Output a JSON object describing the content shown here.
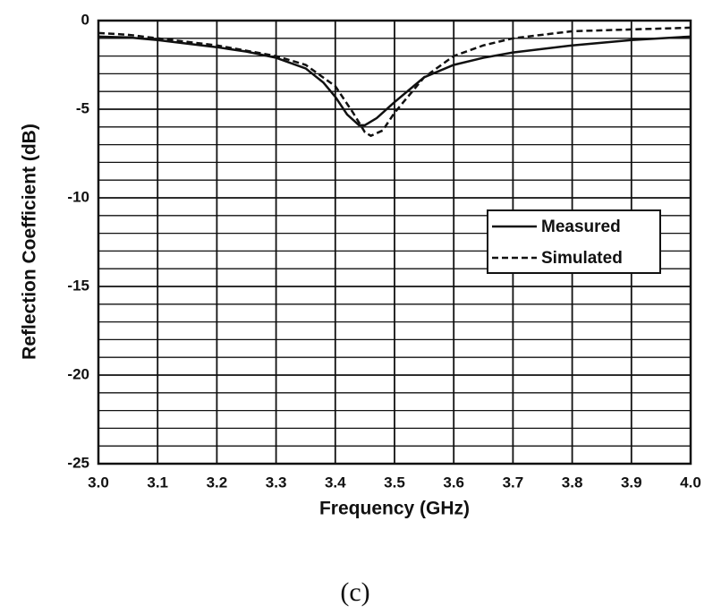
{
  "chart_data": {
    "type": "line",
    "xlabel": "Frequency (GHz)",
    "ylabel": "Reflection Coefficient (dB)",
    "caption": "(c)",
    "xlim": [
      3.0,
      4.0
    ],
    "ylim": [
      -25,
      0
    ],
    "xticks": [
      {
        "value": 3.0,
        "label": "3.0"
      },
      {
        "value": 3.1,
        "label": "3.1"
      },
      {
        "value": 3.2,
        "label": "3.2"
      },
      {
        "value": 3.3,
        "label": "3.3"
      },
      {
        "value": 3.4,
        "label": "3.4"
      },
      {
        "value": 3.5,
        "label": "3.5"
      },
      {
        "value": 3.6,
        "label": "3.6"
      },
      {
        "value": 3.7,
        "label": "3.7"
      },
      {
        "value": 3.8,
        "label": "3.8"
      },
      {
        "value": 3.9,
        "label": "3.9"
      },
      {
        "value": 4.0,
        "label": "4.0"
      }
    ],
    "yticks": [
      0,
      -5,
      -10,
      -15,
      -20,
      -25
    ],
    "yminorticks": [
      -1,
      -2,
      -3,
      -4,
      -6,
      -7,
      -8,
      -9,
      -11,
      -12,
      -13,
      -14,
      -16,
      -17,
      -18,
      -19,
      -21,
      -22,
      -23,
      -24
    ],
    "grid": true,
    "legend": "right",
    "series": [
      {
        "name": "Measured",
        "color": "#111111",
        "dash": "solid",
        "x": [
          3.0,
          3.05,
          3.1,
          3.15,
          3.2,
          3.25,
          3.3,
          3.35,
          3.38,
          3.4,
          3.42,
          3.44,
          3.45,
          3.47,
          3.5,
          3.55,
          3.6,
          3.65,
          3.7,
          3.8,
          3.9,
          4.0
        ],
        "values": [
          -0.9,
          -0.95,
          -1.1,
          -1.3,
          -1.5,
          -1.75,
          -2.1,
          -2.7,
          -3.5,
          -4.3,
          -5.3,
          -5.9,
          -5.9,
          -5.5,
          -4.6,
          -3.2,
          -2.5,
          -2.1,
          -1.8,
          -1.4,
          -1.1,
          -0.9
        ]
      },
      {
        "name": "Simulated",
        "color": "#111111",
        "dash": "dashed",
        "x": [
          3.0,
          3.05,
          3.1,
          3.2,
          3.3,
          3.35,
          3.4,
          3.43,
          3.45,
          3.46,
          3.48,
          3.5,
          3.55,
          3.6,
          3.65,
          3.7,
          3.8,
          3.9,
          4.0
        ],
        "values": [
          -0.7,
          -0.8,
          -1.0,
          -1.4,
          -2.0,
          -2.5,
          -3.7,
          -5.2,
          -6.3,
          -6.5,
          -6.2,
          -5.2,
          -3.2,
          -2.0,
          -1.4,
          -1.0,
          -0.6,
          -0.5,
          -0.4
        ]
      }
    ]
  }
}
